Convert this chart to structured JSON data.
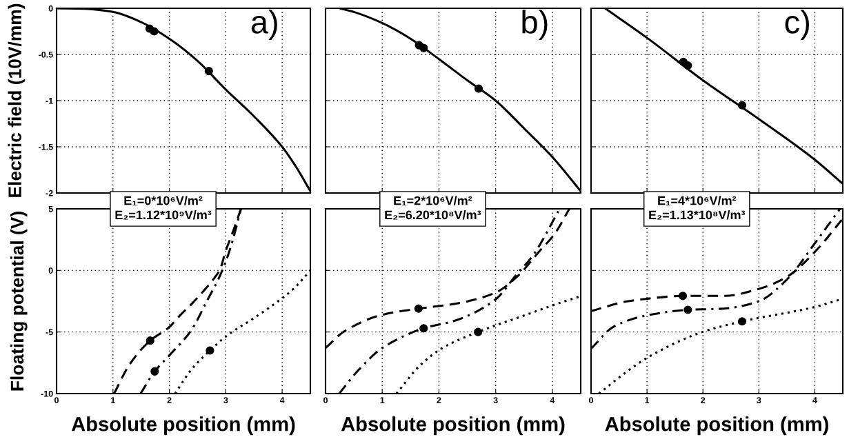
{
  "chart_data": [
    {
      "type": "line",
      "ylabel": "Electric field (10V/mm)",
      "xlim": [
        0,
        4.5
      ],
      "xticks": [
        0,
        1,
        2,
        3,
        4
      ],
      "ylim": [
        -2,
        0
      ],
      "yticks": [
        0,
        -0.5,
        -1,
        -1.5,
        -2
      ],
      "grid": true,
      "tick_labels": "y",
      "annotations": [
        "a)"
      ],
      "series": [
        {
          "type": "line",
          "color": "#000000",
          "line_style": "solid",
          "x": [
            0,
            0.5,
            1,
            1.5,
            2,
            2.5,
            3,
            3.5,
            4,
            4.25,
            4.5
          ],
          "values": [
            0,
            -0.005,
            -0.04,
            -0.15,
            -0.33,
            -0.57,
            -0.88,
            -1.17,
            -1.5,
            -1.72,
            -1.98
          ]
        },
        {
          "type": "scatter",
          "color": "#000000",
          "marker": "circle",
          "x": [
            1.65,
            1.73,
            2.7
          ],
          "values": [
            -0.22,
            -0.25,
            -0.68
          ]
        }
      ]
    },
    {
      "type": "line",
      "xlim": [
        0,
        4.5
      ],
      "xticks": [
        0,
        1,
        2,
        3,
        4
      ],
      "ylim": [
        -2,
        0
      ],
      "yticks": [
        0,
        -0.5,
        -1,
        -1.5,
        -2
      ],
      "grid": true,
      "tick_labels": false,
      "annotations": [
        "b)"
      ],
      "series": [
        {
          "type": "line",
          "color": "#000000",
          "line_style": "solid",
          "x": [
            0.25,
            0.5,
            1,
            1.5,
            2,
            2.5,
            3,
            3.5,
            4,
            4.5
          ],
          "values": [
            0,
            -0.04,
            -0.16,
            -0.33,
            -0.55,
            -0.78,
            -1.0,
            -1.3,
            -1.61,
            -1.98
          ]
        },
        {
          "type": "scatter",
          "color": "#000000",
          "marker": "circle",
          "x": [
            1.65,
            1.73,
            2.7
          ],
          "values": [
            -0.4,
            -0.43,
            -0.87
          ]
        }
      ]
    },
    {
      "type": "line",
      "xlim": [
        0,
        4.5
      ],
      "xticks": [
        0,
        1,
        2,
        3,
        4
      ],
      "ylim": [
        -2,
        0
      ],
      "yticks": [
        0,
        -0.5,
        -1,
        -1.5,
        -2
      ],
      "grid": true,
      "tick_labels": false,
      "annotations": [
        "c)"
      ],
      "series": [
        {
          "type": "line",
          "color": "#000000",
          "line_style": "solid",
          "x": [
            0.25,
            1,
            2,
            3,
            4,
            4.5
          ],
          "values": [
            0,
            -0.32,
            -0.78,
            -1.2,
            -1.64,
            -1.9
          ]
        },
        {
          "type": "scatter",
          "color": "#000000",
          "marker": "circle",
          "x": [
            1.65,
            1.73,
            2.7
          ],
          "values": [
            -0.58,
            -0.62,
            -1.05
          ]
        }
      ]
    },
    {
      "type": "line",
      "xlabel": "Absolute position (mm)",
      "ylabel": "Floating potential (V)",
      "xlim": [
        0,
        4.5
      ],
      "xticks": [
        0,
        1,
        2,
        3,
        4
      ],
      "ylim": [
        -10,
        5
      ],
      "yticks": [
        5,
        0,
        -5,
        -10
      ],
      "grid": true,
      "annotations": [
        "E₁=0*10⁶V/m²\nE₂=1.12*10⁹V/m³"
      ],
      "series": [
        {
          "type": "line",
          "color": "#000000",
          "line_style": "dashed",
          "x": [
            1.02,
            1.3,
            1.66,
            2,
            2.2,
            2.4,
            2.6,
            2.8,
            2.9,
            3.0,
            3.1,
            3.27
          ],
          "values": [
            -10,
            -7.6,
            -5.7,
            -4.6,
            -3.6,
            -2.7,
            -1.7,
            -0.6,
            0.1,
            1.6,
            2.8,
            5
          ]
        },
        {
          "type": "line",
          "color": "#000000",
          "line_style": "dashdot",
          "x": [
            1.49,
            1.74,
            2,
            2.39,
            2.67,
            2.88,
            3.0,
            3.12,
            3.27
          ],
          "values": [
            -10,
            -8.2,
            -6.9,
            -4.85,
            -2.45,
            -0.6,
            0.7,
            2.4,
            5
          ]
        },
        {
          "type": "line",
          "color": "#000000",
          "line_style": "dotted",
          "x": [
            2.1,
            2.4,
            2.72,
            3.02,
            3.49,
            3.9,
            4.2,
            4.5
          ],
          "values": [
            -10,
            -8.0,
            -6.5,
            -5.3,
            -3.9,
            -2.6,
            -1.5,
            0
          ]
        },
        {
          "type": "scatter",
          "color": "#000000",
          "marker": "circle",
          "x": [
            1.66,
            1.74,
            2.72
          ],
          "values": [
            -5.7,
            -8.2,
            -6.5
          ]
        }
      ]
    },
    {
      "type": "line",
      "xlabel": "Absolute position (mm)",
      "xlim": [
        0,
        4.5
      ],
      "xticks": [
        0,
        1,
        2,
        3,
        4
      ],
      "ylim": [
        -10,
        5
      ],
      "yticks": [
        5,
        0,
        -5,
        -10
      ],
      "grid": true,
      "tick_labels": "x",
      "annotations": [
        "E₁=2*10⁶V/m²\nE₂=6.20*10⁸V/m³"
      ],
      "series": [
        {
          "type": "line",
          "color": "#000000",
          "line_style": "dashed",
          "x": [
            0,
            0.33,
            1,
            1.64,
            2.3,
            3,
            3.39,
            3.78,
            4.03,
            4.3
          ],
          "values": [
            -6.3,
            -4.95,
            -3.6,
            -3.1,
            -2.7,
            -1.8,
            -0.45,
            1.6,
            2.9,
            5
          ]
        },
        {
          "type": "line",
          "color": "#000000",
          "line_style": "dashdot",
          "x": [
            0.24,
            0.58,
            1,
            1.73,
            2.3,
            3,
            3.39,
            3.64,
            4.13
          ],
          "values": [
            -10,
            -8.1,
            -6.3,
            -4.7,
            -4.05,
            -2.35,
            -0.2,
            1.1,
            5
          ]
        },
        {
          "type": "line",
          "color": "#000000",
          "line_style": "dotted",
          "x": [
            1.25,
            1.67,
            2.06,
            2.69,
            3.54,
            4.22,
            4.5
          ],
          "values": [
            -10,
            -7.7,
            -6.3,
            -5.0,
            -3.6,
            -2.5,
            -2.1
          ]
        },
        {
          "type": "scatter",
          "color": "#000000",
          "marker": "circle",
          "x": [
            1.64,
            1.73,
            2.69
          ],
          "values": [
            -3.1,
            -4.7,
            -5.0
          ]
        }
      ]
    },
    {
      "type": "line",
      "xlabel": "Absolute position (mm)",
      "xlim": [
        0,
        4.5
      ],
      "xticks": [
        0,
        1,
        2,
        3,
        4
      ],
      "ylim": [
        -10,
        5
      ],
      "yticks": [
        5,
        0,
        -5,
        -10
      ],
      "grid": true,
      "tick_labels": "x",
      "annotations": [
        "E₁=4*10⁶V/m²\nE₂=1.13*10⁸V/m³"
      ],
      "series": [
        {
          "type": "line",
          "color": "#000000",
          "line_style": "dashed",
          "x": [
            0,
            0.66,
            1,
            1.64,
            2.38,
            3,
            3.51,
            4,
            4.5
          ],
          "values": [
            -3.3,
            -2.5,
            -2.3,
            -2.07,
            -2.07,
            -1.5,
            -0.5,
            1.5,
            4.2
          ]
        },
        {
          "type": "line",
          "color": "#000000",
          "line_style": "dashdot",
          "x": [
            0,
            0.41,
            1,
            1.73,
            2.38,
            3,
            3.51,
            4,
            4.45
          ],
          "values": [
            -6.35,
            -4.55,
            -3.65,
            -3.2,
            -3.1,
            -2.5,
            -0.7,
            2.2,
            5
          ]
        },
        {
          "type": "line",
          "color": "#000000",
          "line_style": "dotted",
          "x": [
            0.14,
            0.66,
            1,
            1.99,
            2.7,
            4,
            4.5
          ],
          "values": [
            -10,
            -8.15,
            -7.1,
            -5.0,
            -4.14,
            -2.97,
            -2.3
          ]
        },
        {
          "type": "scatter",
          "color": "#000000",
          "marker": "circle",
          "x": [
            1.64,
            1.73,
            2.7
          ],
          "values": [
            -2.07,
            -3.2,
            -4.14
          ]
        }
      ]
    }
  ]
}
